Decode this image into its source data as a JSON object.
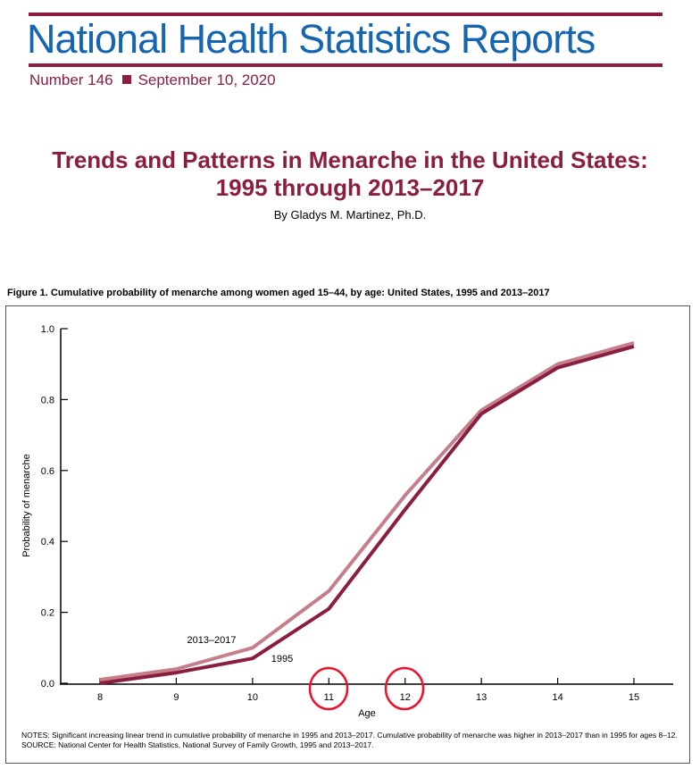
{
  "header": {
    "masthead": "National Health Statistics Reports",
    "number": "Number 146",
    "date": "September 10, 2020",
    "brand_blue": "#1565b0",
    "brand_maroon": "#8b1e3f"
  },
  "article": {
    "title_line1": "Trends and Patterns in Menarche in the United States:",
    "title_line2": "1995 through 2013–2017",
    "author": "By Gladys M. Martinez, Ph.D."
  },
  "figure": {
    "caption": "Figure 1. Cumulative probability of menarche among women aged 15–44, by age: United States, 1995 and 2013–2017",
    "notes": "NOTES: Significant increasing linear trend in cumulative probability of menarche in 1995 and 2013–2017. Cumulative probability of menarche was higher in 2013–2017 than in 1995 for ages 8–12.",
    "source": "SOURCE: National Center for Health Statistics, National Survey of Family Growth, 1995 and 2013–2017."
  },
  "chart_data": {
    "type": "line",
    "title": "",
    "xlabel": "Age",
    "ylabel": "Probability of menarche",
    "x": [
      8,
      9,
      10,
      11,
      12,
      13,
      14,
      15
    ],
    "xlim": [
      7.5,
      15.5
    ],
    "ylim": [
      0,
      1.0
    ],
    "yticks": [
      "0.0",
      "0.2",
      "0.4",
      "0.6",
      "0.8",
      "1.0"
    ],
    "xticks": [
      "8",
      "9",
      "10",
      "11",
      "12",
      "13",
      "14",
      "15"
    ],
    "grid": false,
    "series": [
      {
        "name": "2013–2017",
        "color": "#c47f8a",
        "values": [
          0.01,
          0.04,
          0.1,
          0.26,
          0.53,
          0.77,
          0.9,
          0.96
        ]
      },
      {
        "name": "1995",
        "color": "#8b1e3f",
        "values": [
          0.0,
          0.03,
          0.07,
          0.21,
          0.49,
          0.76,
          0.89,
          0.95
        ]
      }
    ],
    "annotations": [
      "red circles around x-tick labels 11 and 12"
    ]
  }
}
